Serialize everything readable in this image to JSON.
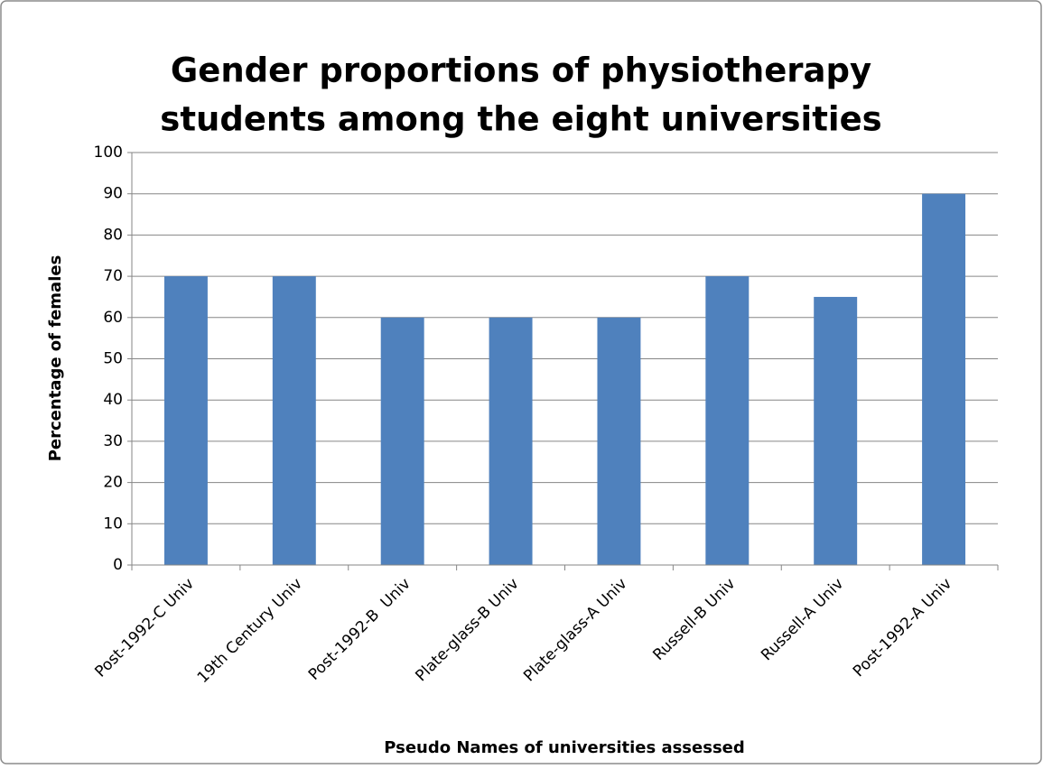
{
  "chart_data": {
    "type": "bar",
    "title": [
      "Gender proportions of physiotherapy",
      "students among the eight universities"
    ],
    "xlabel": "Pseudo Names of universities assessed",
    "ylabel": "Percentage of females",
    "categories": [
      "Post-1992-C Univ",
      "19th Century Univ",
      "Post-1992-B  Univ",
      "Plate-glass-B Univ",
      "Plate-glass-A Univ",
      "Russell-B Univ",
      "Russell-A Univ",
      "Post-1992-A Univ"
    ],
    "values": [
      70,
      70,
      60,
      60,
      60,
      70,
      65,
      90
    ],
    "color": "#4f81bd",
    "ylim": [
      0,
      100
    ],
    "yticks": [
      0,
      10,
      20,
      30,
      40,
      50,
      60,
      70,
      80,
      90,
      100
    ],
    "grid": true
  }
}
